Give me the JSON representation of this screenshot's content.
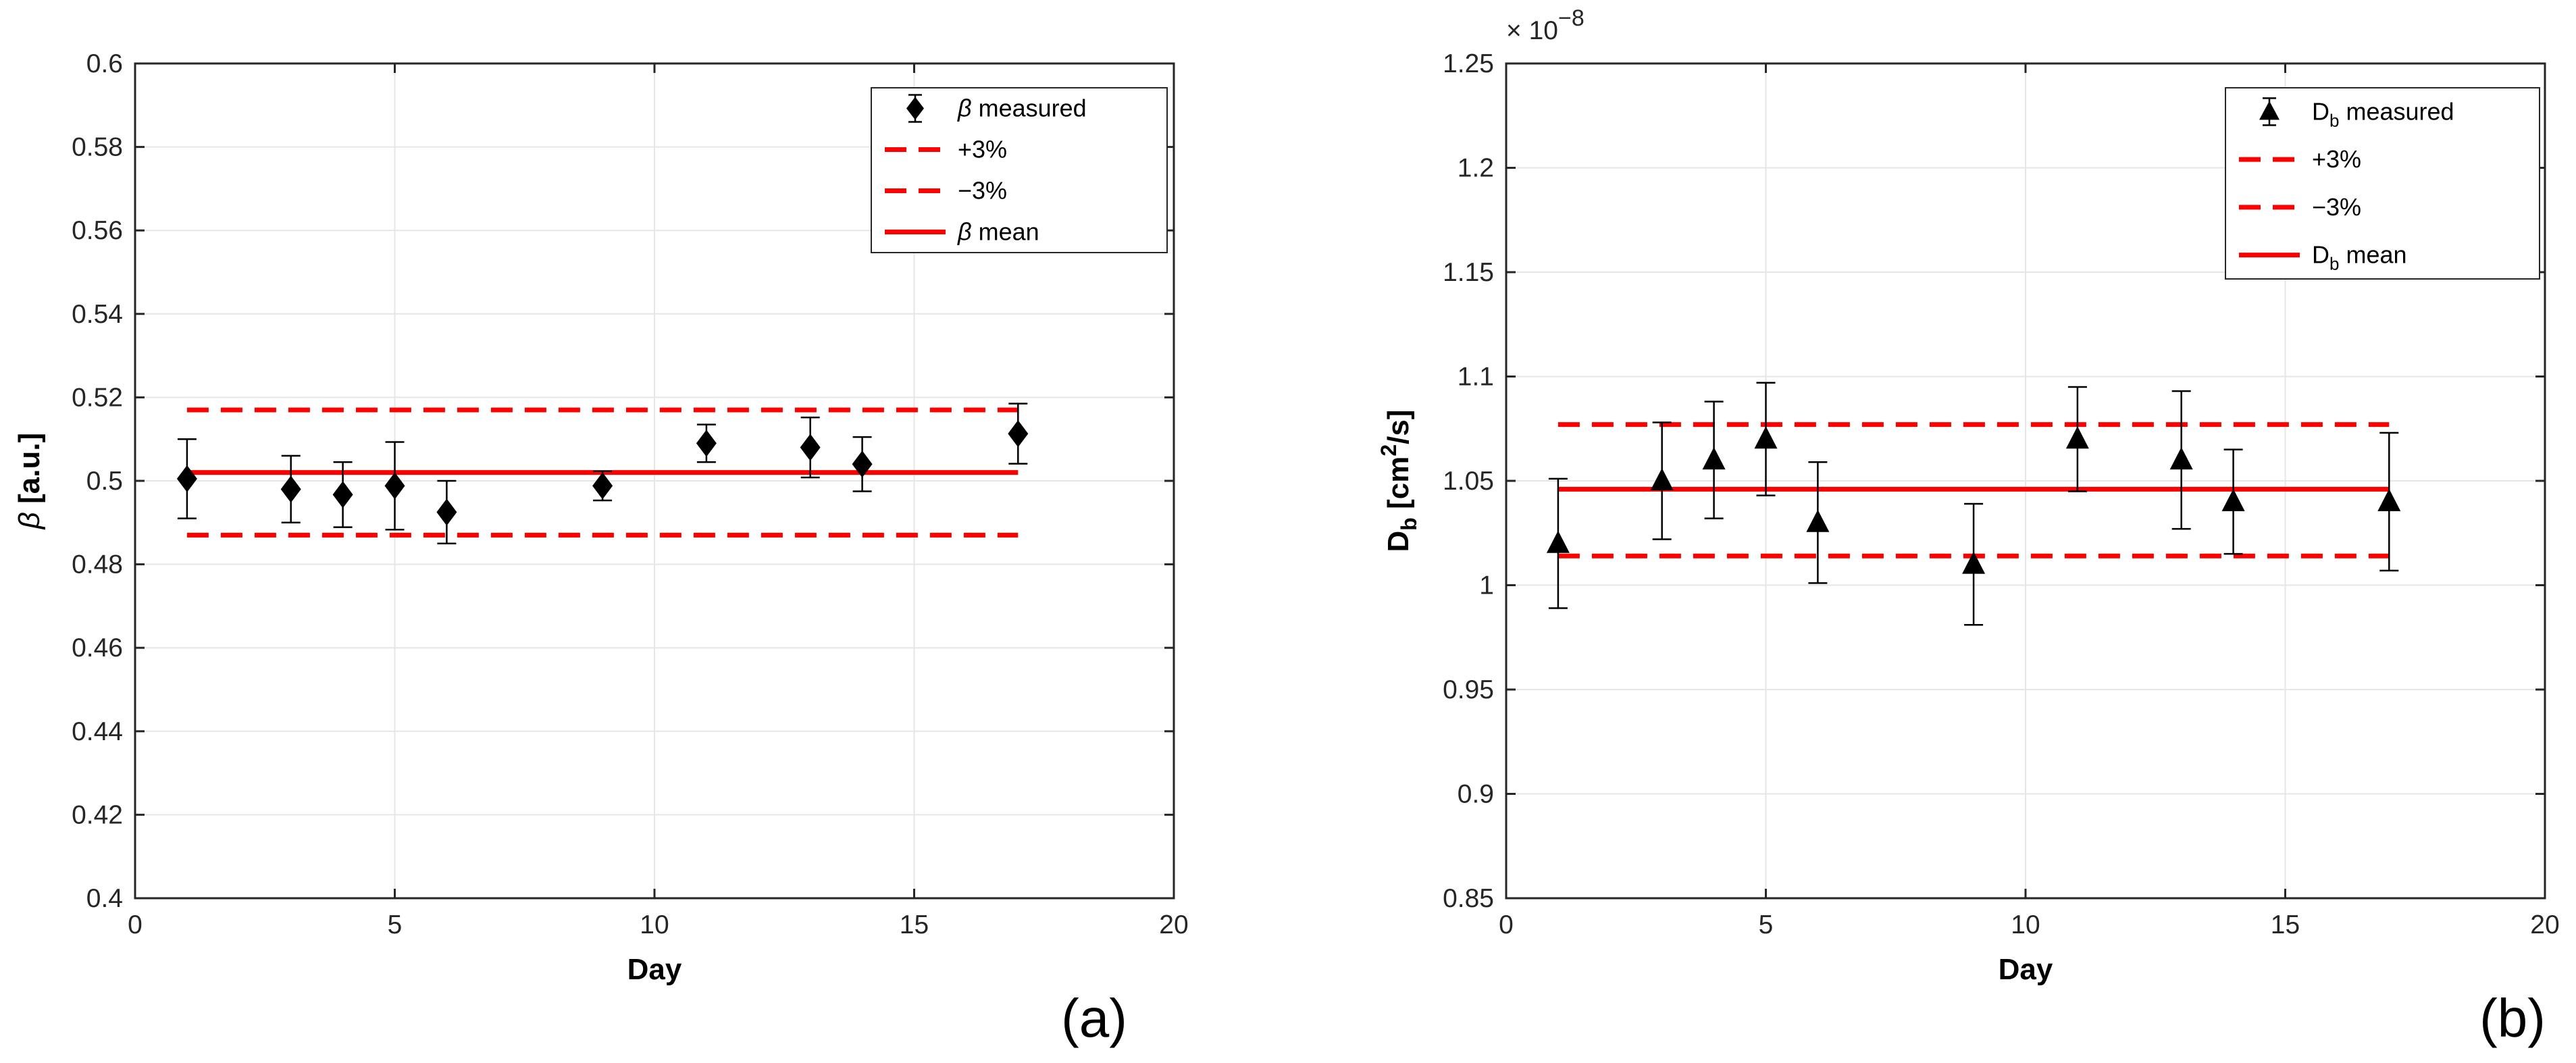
{
  "chart_data": [
    {
      "type": "scatter",
      "panel_label": "(a)",
      "xlabel": "Day",
      "ylabel": "[a.u.]",
      "ylabel_symbol": "β",
      "xlim": [
        0,
        20
      ],
      "ylim": [
        0.4,
        0.6
      ],
      "xticks": [
        0,
        5,
        10,
        15,
        20
      ],
      "yticks": [
        0.4,
        0.42,
        0.44,
        0.46,
        0.48,
        0.5,
        0.52,
        0.54,
        0.56,
        0.58,
        0.6
      ],
      "ytick_labels": [
        "0.4",
        "0.42",
        "0.44",
        "0.46",
        "0.48",
        "0.5",
        "0.52",
        "0.54",
        "0.56",
        "0.58",
        "0.6"
      ],
      "exponent_label": "",
      "marker": "diamond",
      "grid": true,
      "legend_position": "top-right",
      "legend": {
        "measured": {
          "symbol": "β",
          "text": "measured"
        },
        "plus": "+3%",
        "minus": "−3%",
        "mean": {
          "symbol": "β",
          "text": "mean"
        }
      },
      "x": [
        1,
        3,
        4,
        5,
        6,
        9,
        11,
        13,
        14,
        17
      ],
      "y": [
        0.5005,
        0.498,
        0.4967,
        0.4988,
        0.4925,
        0.4988,
        0.509,
        0.508,
        0.504,
        0.5113
      ],
      "err": [
        0.0095,
        0.008,
        0.0078,
        0.0105,
        0.0075,
        0.0035,
        0.0045,
        0.0072,
        0.0065,
        0.0072
      ],
      "mean": 0.502,
      "plus3": 0.517,
      "minus3": 0.487,
      "line_x_range": [
        1,
        17
      ],
      "colors": {
        "marker": "#000000",
        "lines": "#ff0000"
      }
    },
    {
      "type": "scatter",
      "panel_label": "(b)",
      "xlabel": "Day",
      "ylabel": "D",
      "ylabel_sub": "b",
      "ylabel_rest1": " [cm",
      "ylabel_sup": "2",
      "ylabel_rest2": "/s]",
      "xlim": [
        0,
        20
      ],
      "ylim": [
        0.85,
        1.25
      ],
      "xticks": [
        0,
        5,
        10,
        15,
        20
      ],
      "yticks": [
        0.85,
        0.9,
        0.95,
        1,
        1.05,
        1.1,
        1.15,
        1.2,
        1.25
      ],
      "ytick_labels": [
        "0.85",
        "0.9",
        "0.95",
        "1",
        "1.05",
        "1.1",
        "1.15",
        "1.2",
        "1.25"
      ],
      "exponent_label": "× 10",
      "exponent_power": "−8",
      "marker": "triangle",
      "grid": true,
      "legend_position": "top-right",
      "legend": {
        "measured": {
          "symbol": "D",
          "sub": "b",
          "text": " measured"
        },
        "plus": "+3%",
        "minus": "−3%",
        "mean": {
          "symbol": "D",
          "sub": "b",
          "text": " mean"
        }
      },
      "x": [
        1,
        3,
        4,
        5,
        6,
        9,
        11,
        13,
        14,
        17
      ],
      "y": [
        1.02,
        1.05,
        1.06,
        1.07,
        1.03,
        1.01,
        1.07,
        1.06,
        1.04,
        1.04
      ],
      "err": [
        0.031,
        0.028,
        0.028,
        0.027,
        0.029,
        0.029,
        0.025,
        0.033,
        0.025,
        0.033
      ],
      "mean": 1.046,
      "plus3": 1.077,
      "minus3": 1.014,
      "line_x_range": [
        1,
        17
      ],
      "colors": {
        "marker": "#000000",
        "lines": "#ff0000"
      }
    }
  ]
}
